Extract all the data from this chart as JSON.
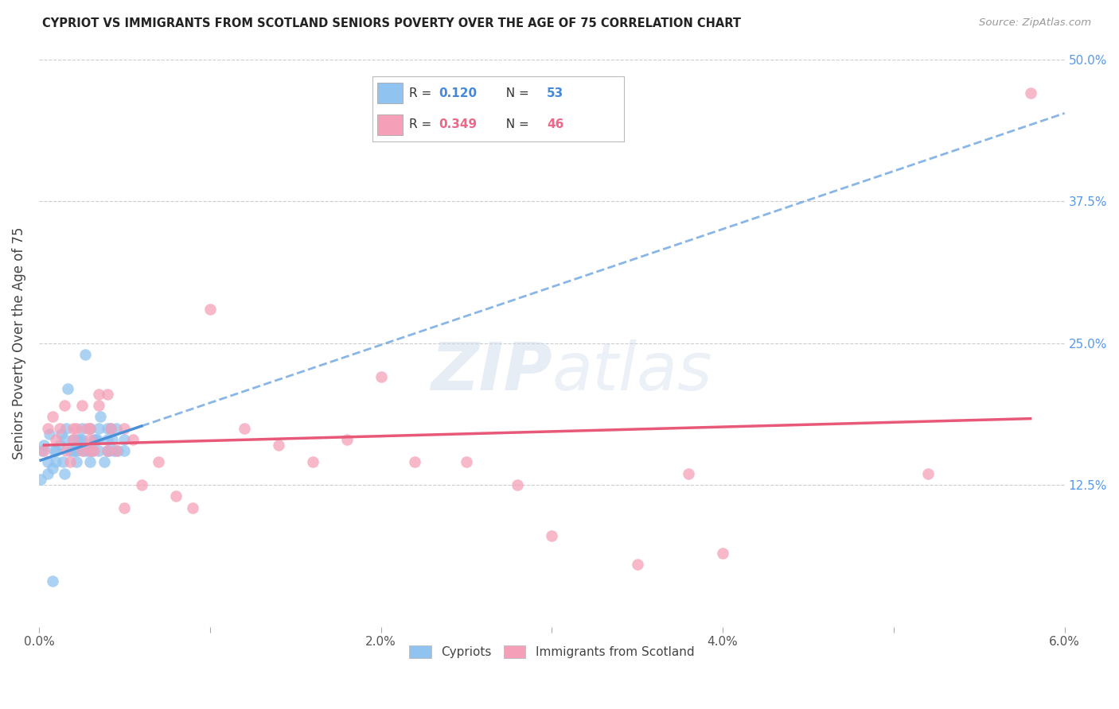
{
  "title": "CYPRIOT VS IMMIGRANTS FROM SCOTLAND SENIORS POVERTY OVER THE AGE OF 75 CORRELATION CHART",
  "source": "Source: ZipAtlas.com",
  "ylabel": "Seniors Poverty Over the Age of 75",
  "xlim": [
    0.0,
    0.06
  ],
  "ylim": [
    0.0,
    0.5
  ],
  "xticks": [
    0.0,
    0.01,
    0.02,
    0.03,
    0.04,
    0.05,
    0.06
  ],
  "yticks": [
    0.0,
    0.125,
    0.25,
    0.375,
    0.5
  ],
  "xtick_labels": [
    "0.0%",
    "",
    "2.0%",
    "",
    "4.0%",
    "",
    "6.0%"
  ],
  "ytick_labels": [
    "",
    "12.5%",
    "25.0%",
    "37.5%",
    "50.0%"
  ],
  "background_color": "#ffffff",
  "grid_color": "#cccccc",
  "cypriot_color": "#91C3F0",
  "scotland_color": "#F5A0B8",
  "cypriot_line_color": "#4A90D9",
  "scotland_line_color": "#E85878",
  "cypriot_R": 0.12,
  "cypriot_N": 53,
  "scotland_R": 0.349,
  "scotland_N": 46,
  "legend_label1": "Cypriots",
  "legend_label2": "Immigrants from Scotland",
  "cypriot_x": [
    0.0001,
    0.0002,
    0.0003,
    0.0005,
    0.0005,
    0.0006,
    0.0008,
    0.0009,
    0.001,
    0.001,
    0.0012,
    0.0013,
    0.0014,
    0.0015,
    0.0015,
    0.0016,
    0.0017,
    0.0018,
    0.002,
    0.002,
    0.0021,
    0.0022,
    0.0022,
    0.0023,
    0.0024,
    0.0025,
    0.0025,
    0.0026,
    0.0027,
    0.0028,
    0.003,
    0.003,
    0.003,
    0.0031,
    0.0032,
    0.0033,
    0.0034,
    0.0035,
    0.0035,
    0.0036,
    0.0038,
    0.004,
    0.004,
    0.004,
    0.0041,
    0.0042,
    0.0043,
    0.0044,
    0.0045,
    0.0046,
    0.005,
    0.005,
    0.0008
  ],
  "cypriot_y": [
    0.13,
    0.155,
    0.16,
    0.135,
    0.145,
    0.17,
    0.14,
    0.155,
    0.145,
    0.155,
    0.16,
    0.17,
    0.145,
    0.135,
    0.165,
    0.175,
    0.21,
    0.155,
    0.155,
    0.165,
    0.155,
    0.155,
    0.145,
    0.165,
    0.165,
    0.165,
    0.175,
    0.155,
    0.24,
    0.155,
    0.145,
    0.155,
    0.175,
    0.155,
    0.165,
    0.165,
    0.165,
    0.175,
    0.155,
    0.185,
    0.145,
    0.165,
    0.155,
    0.175,
    0.155,
    0.175,
    0.165,
    0.155,
    0.175,
    0.155,
    0.165,
    0.155,
    0.04
  ],
  "scotland_x": [
    0.0003,
    0.0005,
    0.0008,
    0.001,
    0.0012,
    0.0015,
    0.0016,
    0.0018,
    0.002,
    0.002,
    0.0022,
    0.0025,
    0.0025,
    0.0028,
    0.003,
    0.003,
    0.003,
    0.0032,
    0.0035,
    0.0035,
    0.004,
    0.004,
    0.0042,
    0.0045,
    0.005,
    0.005,
    0.0055,
    0.006,
    0.007,
    0.008,
    0.009,
    0.01,
    0.012,
    0.014,
    0.016,
    0.018,
    0.02,
    0.022,
    0.025,
    0.028,
    0.03,
    0.035,
    0.038,
    0.04,
    0.052,
    0.058
  ],
  "scotland_y": [
    0.155,
    0.175,
    0.185,
    0.165,
    0.175,
    0.195,
    0.155,
    0.145,
    0.165,
    0.175,
    0.175,
    0.155,
    0.195,
    0.175,
    0.165,
    0.155,
    0.175,
    0.155,
    0.205,
    0.195,
    0.205,
    0.155,
    0.175,
    0.155,
    0.175,
    0.105,
    0.165,
    0.125,
    0.145,
    0.115,
    0.105,
    0.28,
    0.175,
    0.16,
    0.145,
    0.165,
    0.22,
    0.145,
    0.145,
    0.125,
    0.08,
    0.055,
    0.135,
    0.065,
    0.135,
    0.47
  ],
  "cypriot_line_x_start": 0.0001,
  "cypriot_line_x_end": 0.006,
  "cypriot_line_x_dash_end": 0.06,
  "scotland_line_x_start": 0.0003,
  "scotland_line_x_end": 0.058
}
